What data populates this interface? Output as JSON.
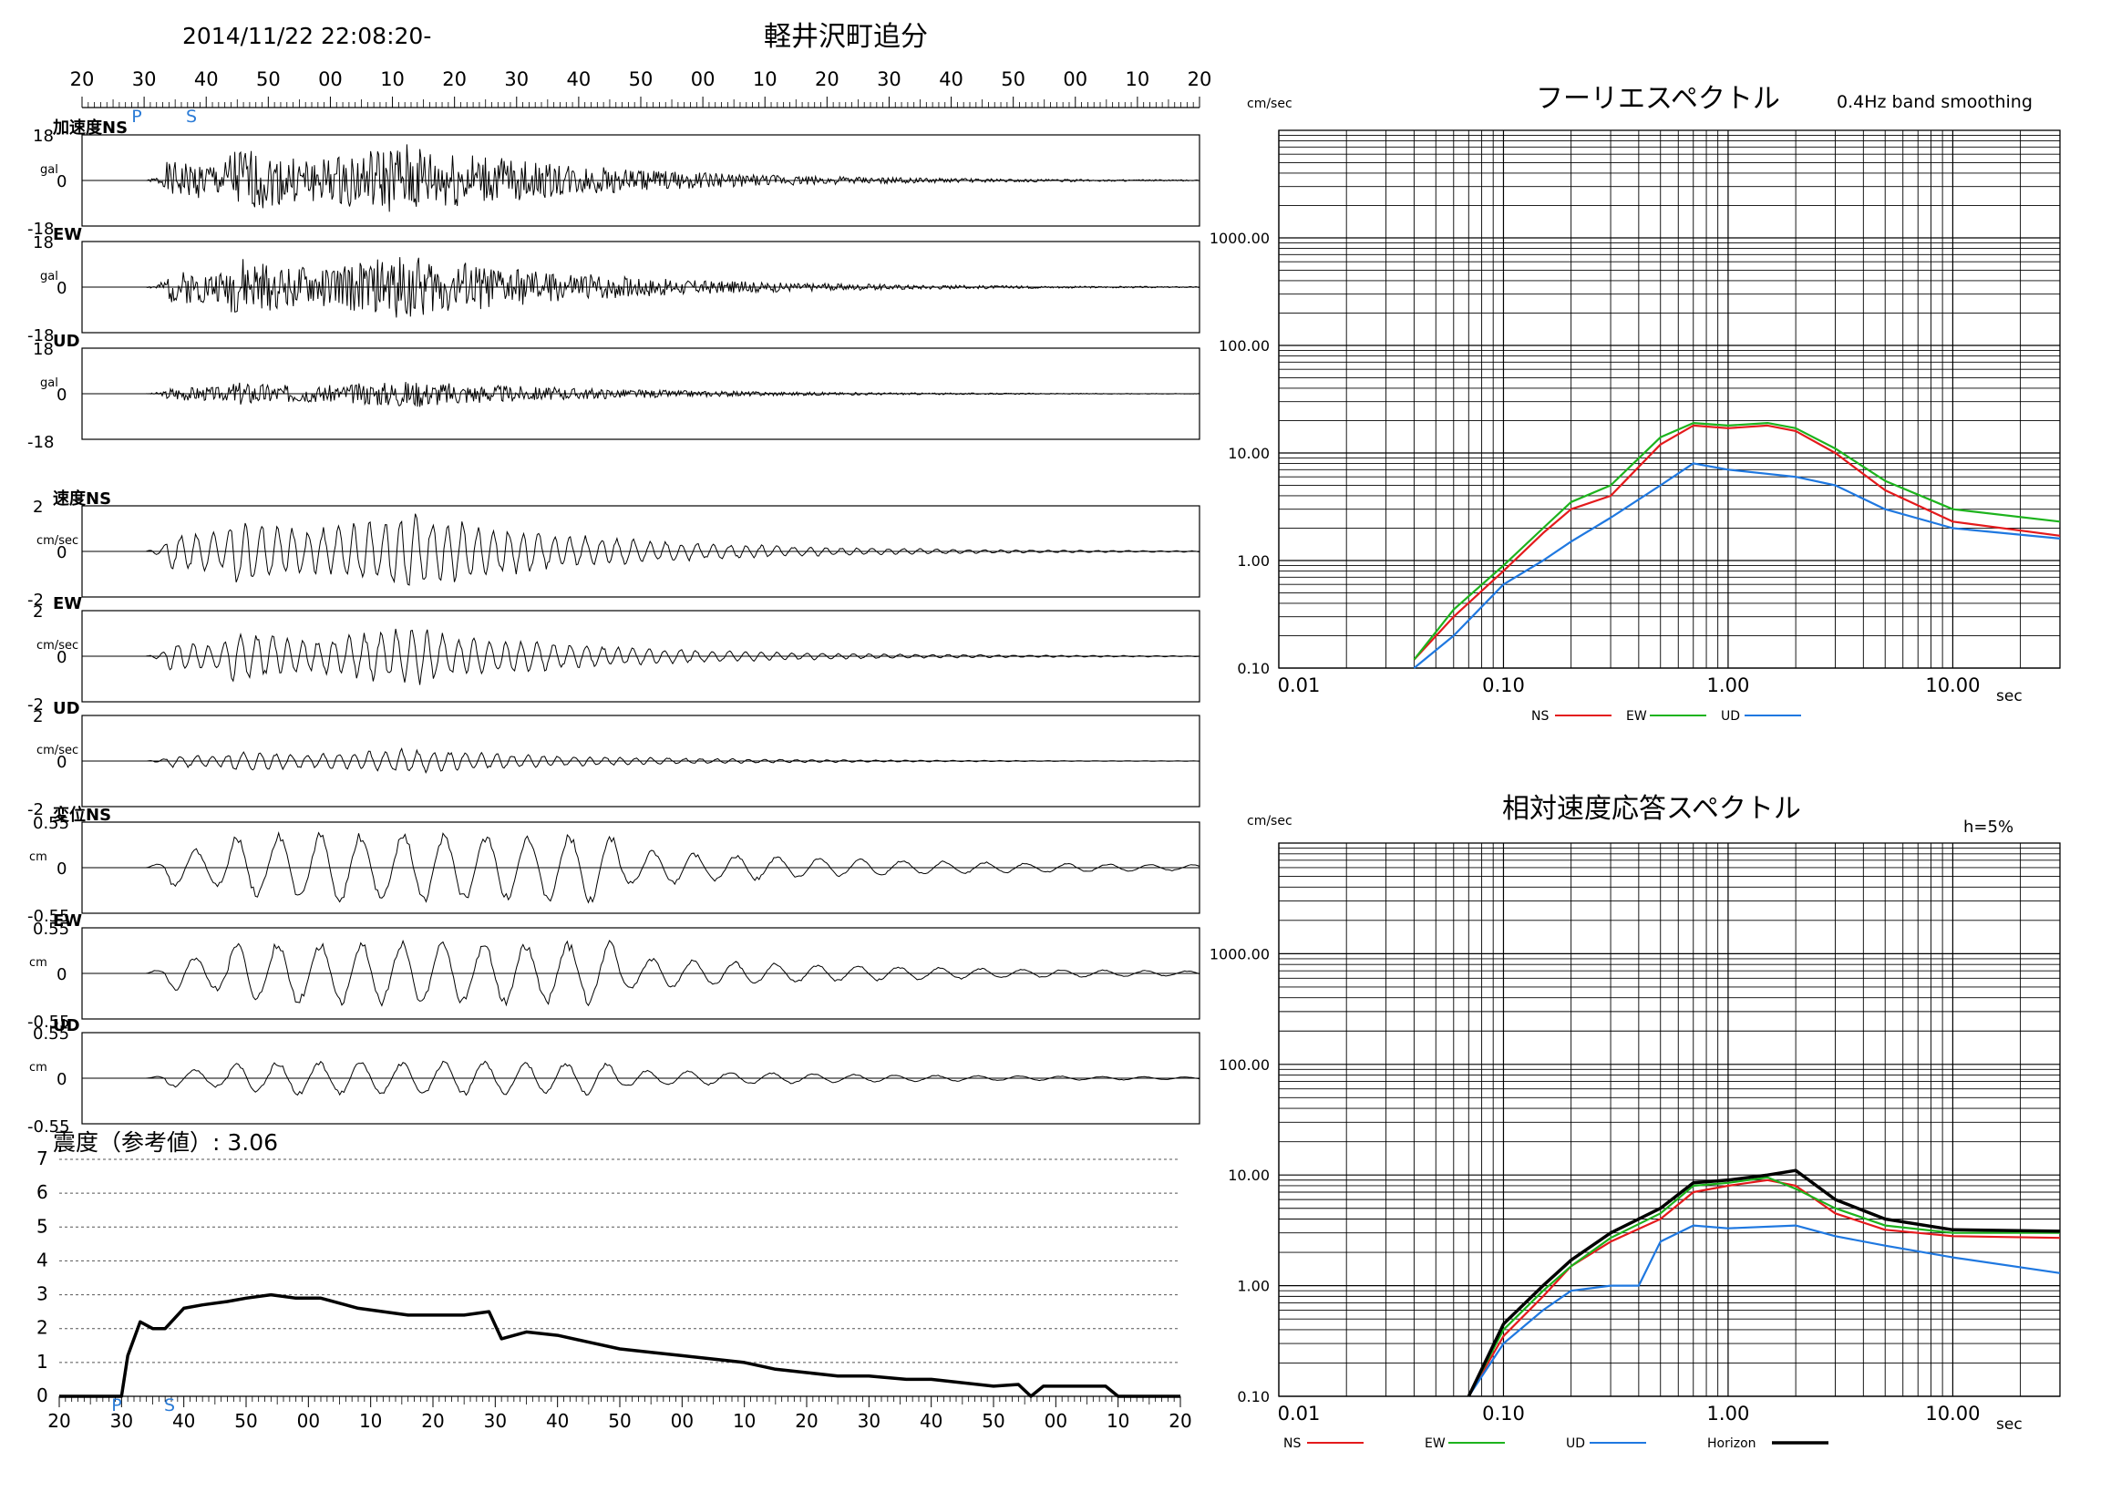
{
  "header": {
    "datetime": "2014/11/22 22:08:20-",
    "station": "軽井沢町追分"
  },
  "timeline": {
    "labels": [
      "20",
      "30",
      "40",
      "50",
      "00",
      "10",
      "20",
      "30",
      "40",
      "50",
      "00",
      "10",
      "20",
      "30",
      "40",
      "50",
      "00",
      "10",
      "20"
    ],
    "p_marker": "P",
    "s_marker": "S",
    "bottom_labels": [
      "20",
      "30",
      "40",
      "50",
      "00",
      "10",
      "20",
      "30",
      "40",
      "50",
      "00",
      "10",
      "20",
      "30",
      "40",
      "50",
      "00",
      "10",
      "20"
    ]
  },
  "waveforms": [
    {
      "label": "加速度NS",
      "unit": "gal",
      "top": "18",
      "zero": "0",
      "bottom": "-18",
      "amp": 0.85,
      "kind": "acc",
      "seed": 1
    },
    {
      "label": "EW",
      "unit": "gal",
      "top": "18",
      "zero": "0",
      "bottom": "-18",
      "amp": 0.75,
      "kind": "acc",
      "seed": 2
    },
    {
      "label": "UD",
      "unit": "gal",
      "top": "18",
      "zero": "0",
      "bottom": "-18",
      "amp": 0.32,
      "kind": "acc",
      "seed": 3
    },
    {
      "label": "速度NS",
      "unit": "cm/sec",
      "top": "2",
      "zero": "0",
      "bottom": "-2",
      "amp": 0.95,
      "kind": "vel",
      "seed": 4
    },
    {
      "label": "EW",
      "unit": "cm/sec",
      "top": "2",
      "zero": "0",
      "bottom": "-2",
      "amp": 0.7,
      "kind": "vel",
      "seed": 5
    },
    {
      "label": "UD",
      "unit": "cm/sec",
      "top": "2",
      "zero": "0",
      "bottom": "-2",
      "amp": 0.3,
      "kind": "vel",
      "seed": 6
    },
    {
      "label": "変位NS",
      "unit": "cm",
      "top": "0.55",
      "zero": "0",
      "bottom": "-0.55",
      "amp": 0.95,
      "kind": "disp",
      "seed": 7
    },
    {
      "label": "EW",
      "unit": "cm",
      "top": "0.55",
      "zero": "0",
      "bottom": "-0.55",
      "amp": 0.85,
      "kind": "disp",
      "seed": 8
    },
    {
      "label": "UD",
      "unit": "cm",
      "top": "0.55",
      "zero": "0",
      "bottom": "-0.55",
      "amp": 0.45,
      "kind": "disp",
      "seed": 9
    }
  ],
  "intensity": {
    "title": "震度（参考値）: 3.06",
    "y_ticks": [
      "0",
      "1",
      "2",
      "3",
      "4",
      "5",
      "6",
      "7"
    ]
  },
  "fourier": {
    "title": "フーリエスペクトル",
    "subtitle": "0.4Hz band smoothing",
    "y_unit": "cm/sec",
    "x_unit": "sec",
    "y_ticks": [
      "0.10",
      "1.00",
      "10.00",
      "100.00",
      "1000.00"
    ],
    "x_ticks": [
      "0.01",
      "0.10",
      "1.00",
      "10.00"
    ],
    "legend": [
      {
        "name": "NS",
        "color": "#e41a1c"
      },
      {
        "name": "EW",
        "color": "#1db31d"
      },
      {
        "name": "UD",
        "color": "#1f78e0"
      }
    ]
  },
  "response": {
    "title": "相対速度応答スペクトル",
    "damping": "h=5%",
    "y_unit": "cm/sec",
    "x_unit": "sec",
    "y_ticks": [
      "0.10",
      "1.00",
      "10.00",
      "100.00",
      "1000.00"
    ],
    "x_ticks": [
      "0.01",
      "0.10",
      "1.00",
      "10.00"
    ],
    "legend": [
      {
        "name": "NS",
        "color": "#e41a1c"
      },
      {
        "name": "EW",
        "color": "#1db31d"
      },
      {
        "name": "UD",
        "color": "#1f78e0"
      },
      {
        "name": "Horizon",
        "color": "#000000"
      }
    ]
  },
  "colors": {
    "ns": "#e41a1c",
    "ew": "#1db31d",
    "ud": "#1f78e0",
    "horizon": "#000000",
    "marker": "#2b7bd6"
  },
  "chart_data": [
    {
      "type": "line",
      "title": "震度（参考値）: 3.06",
      "xlabel": "",
      "ylabel": "",
      "x_ticks": [
        "20",
        "30",
        "40",
        "50",
        "00",
        "10",
        "20",
        "30",
        "40",
        "50",
        "00",
        "10",
        "20",
        "30",
        "40",
        "50",
        "00",
        "10",
        "20"
      ],
      "ylim": [
        0,
        7
      ],
      "series": [
        {
          "values_approx": [
            [
              0,
              0
            ],
            [
              10,
              0
            ],
            [
              11,
              1.2
            ],
            [
              13,
              2.2
            ],
            [
              15,
              2.0
            ],
            [
              17,
              2.0
            ],
            [
              20,
              2.6
            ],
            [
              23,
              2.7
            ],
            [
              27,
              2.8
            ],
            [
              30,
              2.9
            ],
            [
              34,
              3.0
            ],
            [
              38,
              2.9
            ],
            [
              42,
              2.9
            ],
            [
              46,
              2.7
            ],
            [
              48,
              2.6
            ],
            [
              52,
              2.5
            ],
            [
              56,
              2.4
            ],
            [
              60,
              2.4
            ],
            [
              65,
              2.4
            ],
            [
              69,
              2.5
            ],
            [
              71,
              1.7
            ],
            [
              75,
              1.9
            ],
            [
              80,
              1.8
            ],
            [
              85,
              1.6
            ],
            [
              90,
              1.4
            ],
            [
              95,
              1.3
            ],
            [
              100,
              1.2
            ],
            [
              105,
              1.1
            ],
            [
              110,
              1.0
            ],
            [
              115,
              0.8
            ],
            [
              120,
              0.7
            ],
            [
              125,
              0.6
            ],
            [
              130,
              0.6
            ],
            [
              136,
              0.5
            ],
            [
              140,
              0.5
            ],
            [
              145,
              0.4
            ],
            [
              150,
              0.3
            ],
            [
              154,
              0.35
            ],
            [
              156,
              0.0
            ],
            [
              158,
              0.3
            ],
            [
              162,
              0.3
            ],
            [
              168,
              0.3
            ],
            [
              170,
              0.0
            ],
            [
              180,
              0.0
            ]
          ]
        }
      ]
    },
    {
      "type": "line",
      "title": "フーリエスペクトル",
      "xlabel": "sec",
      "ylabel": "cm/sec",
      "x_log": true,
      "y_log": true,
      "xlim": [
        0.01,
        30
      ],
      "ylim": [
        0.1,
        10000
      ],
      "series": [
        {
          "name": "NS",
          "values_approx": [
            [
              0.04,
              0.12
            ],
            [
              0.06,
              0.3
            ],
            [
              0.1,
              0.8
            ],
            [
              0.15,
              1.8
            ],
            [
              0.2,
              3.0
            ],
            [
              0.3,
              4.0
            ],
            [
              0.5,
              12.0
            ],
            [
              0.7,
              18.0
            ],
            [
              1.0,
              17.0
            ],
            [
              1.5,
              18.0
            ],
            [
              2.0,
              16.0
            ],
            [
              3.0,
              10.0
            ],
            [
              5.0,
              4.5
            ],
            [
              10.0,
              2.3
            ],
            [
              30.0,
              1.7
            ]
          ]
        },
        {
          "name": "EW",
          "values_approx": [
            [
              0.04,
              0.12
            ],
            [
              0.06,
              0.35
            ],
            [
              0.1,
              0.9
            ],
            [
              0.15,
              2.0
            ],
            [
              0.2,
              3.5
            ],
            [
              0.3,
              5.0
            ],
            [
              0.5,
              14.0
            ],
            [
              0.7,
              19.0
            ],
            [
              1.0,
              18.0
            ],
            [
              1.5,
              19.0
            ],
            [
              2.0,
              17.0
            ],
            [
              3.0,
              11.0
            ],
            [
              5.0,
              5.5
            ],
            [
              10.0,
              3.0
            ],
            [
              30.0,
              2.3
            ]
          ]
        },
        {
          "name": "UD",
          "values_approx": [
            [
              0.04,
              0.1
            ],
            [
              0.06,
              0.2
            ],
            [
              0.1,
              0.6
            ],
            [
              0.15,
              1.0
            ],
            [
              0.2,
              1.5
            ],
            [
              0.3,
              2.5
            ],
            [
              0.5,
              5.0
            ],
            [
              0.7,
              8.0
            ],
            [
              1.0,
              7.0
            ],
            [
              2.0,
              6.0
            ],
            [
              3.0,
              5.0
            ],
            [
              5.0,
              3.0
            ],
            [
              10.0,
              2.0
            ],
            [
              30.0,
              1.6
            ]
          ]
        }
      ]
    },
    {
      "type": "line",
      "title": "相対速度応答スペクトル",
      "xlabel": "sec",
      "ylabel": "cm/sec",
      "x_log": true,
      "y_log": true,
      "xlim": [
        0.01,
        30
      ],
      "ylim": [
        0.1,
        10000
      ],
      "series": [
        {
          "name": "NS",
          "values_approx": [
            [
              0.07,
              0.1
            ],
            [
              0.1,
              0.35
            ],
            [
              0.15,
              0.8
            ],
            [
              0.2,
              1.5
            ],
            [
              0.3,
              2.5
            ],
            [
              0.5,
              4.0
            ],
            [
              0.7,
              7.0
            ],
            [
              1.0,
              8.0
            ],
            [
              1.5,
              9.0
            ],
            [
              2.0,
              8.0
            ],
            [
              3.0,
              4.5
            ],
            [
              5.0,
              3.2
            ],
            [
              10.0,
              2.8
            ],
            [
              30.0,
              2.7
            ]
          ]
        },
        {
          "name": "EW",
          "values_approx": [
            [
              0.07,
              0.1
            ],
            [
              0.1,
              0.4
            ],
            [
              0.15,
              0.9
            ],
            [
              0.2,
              1.5
            ],
            [
              0.3,
              2.7
            ],
            [
              0.5,
              4.5
            ],
            [
              0.7,
              8.0
            ],
            [
              1.0,
              8.5
            ],
            [
              1.5,
              9.5
            ],
            [
              2.0,
              7.5
            ],
            [
              3.0,
              5.0
            ],
            [
              5.0,
              3.5
            ],
            [
              10.0,
              3.0
            ],
            [
              30.0,
              3.0
            ]
          ]
        },
        {
          "name": "UD",
          "values_approx": [
            [
              0.07,
              0.1
            ],
            [
              0.1,
              0.3
            ],
            [
              0.15,
              0.6
            ],
            [
              0.2,
              0.9
            ],
            [
              0.3,
              1.0
            ],
            [
              0.4,
              1.0
            ],
            [
              0.5,
              2.5
            ],
            [
              0.7,
              3.5
            ],
            [
              1.0,
              3.3
            ],
            [
              2.0,
              3.5
            ],
            [
              3.0,
              2.8
            ],
            [
              5.0,
              2.3
            ],
            [
              10.0,
              1.8
            ],
            [
              30.0,
              1.3
            ]
          ]
        },
        {
          "name": "Horizon",
          "values_approx": [
            [
              0.07,
              0.1
            ],
            [
              0.1,
              0.45
            ],
            [
              0.15,
              1.0
            ],
            [
              0.2,
              1.7
            ],
            [
              0.3,
              3.0
            ],
            [
              0.5,
              5.0
            ],
            [
              0.7,
              8.5
            ],
            [
              1.0,
              9.0
            ],
            [
              1.5,
              10.0
            ],
            [
              2.0,
              11.0
            ],
            [
              3.0,
              6.0
            ],
            [
              5.0,
              4.0
            ],
            [
              10.0,
              3.2
            ],
            [
              30.0,
              3.1
            ]
          ]
        }
      ]
    }
  ]
}
